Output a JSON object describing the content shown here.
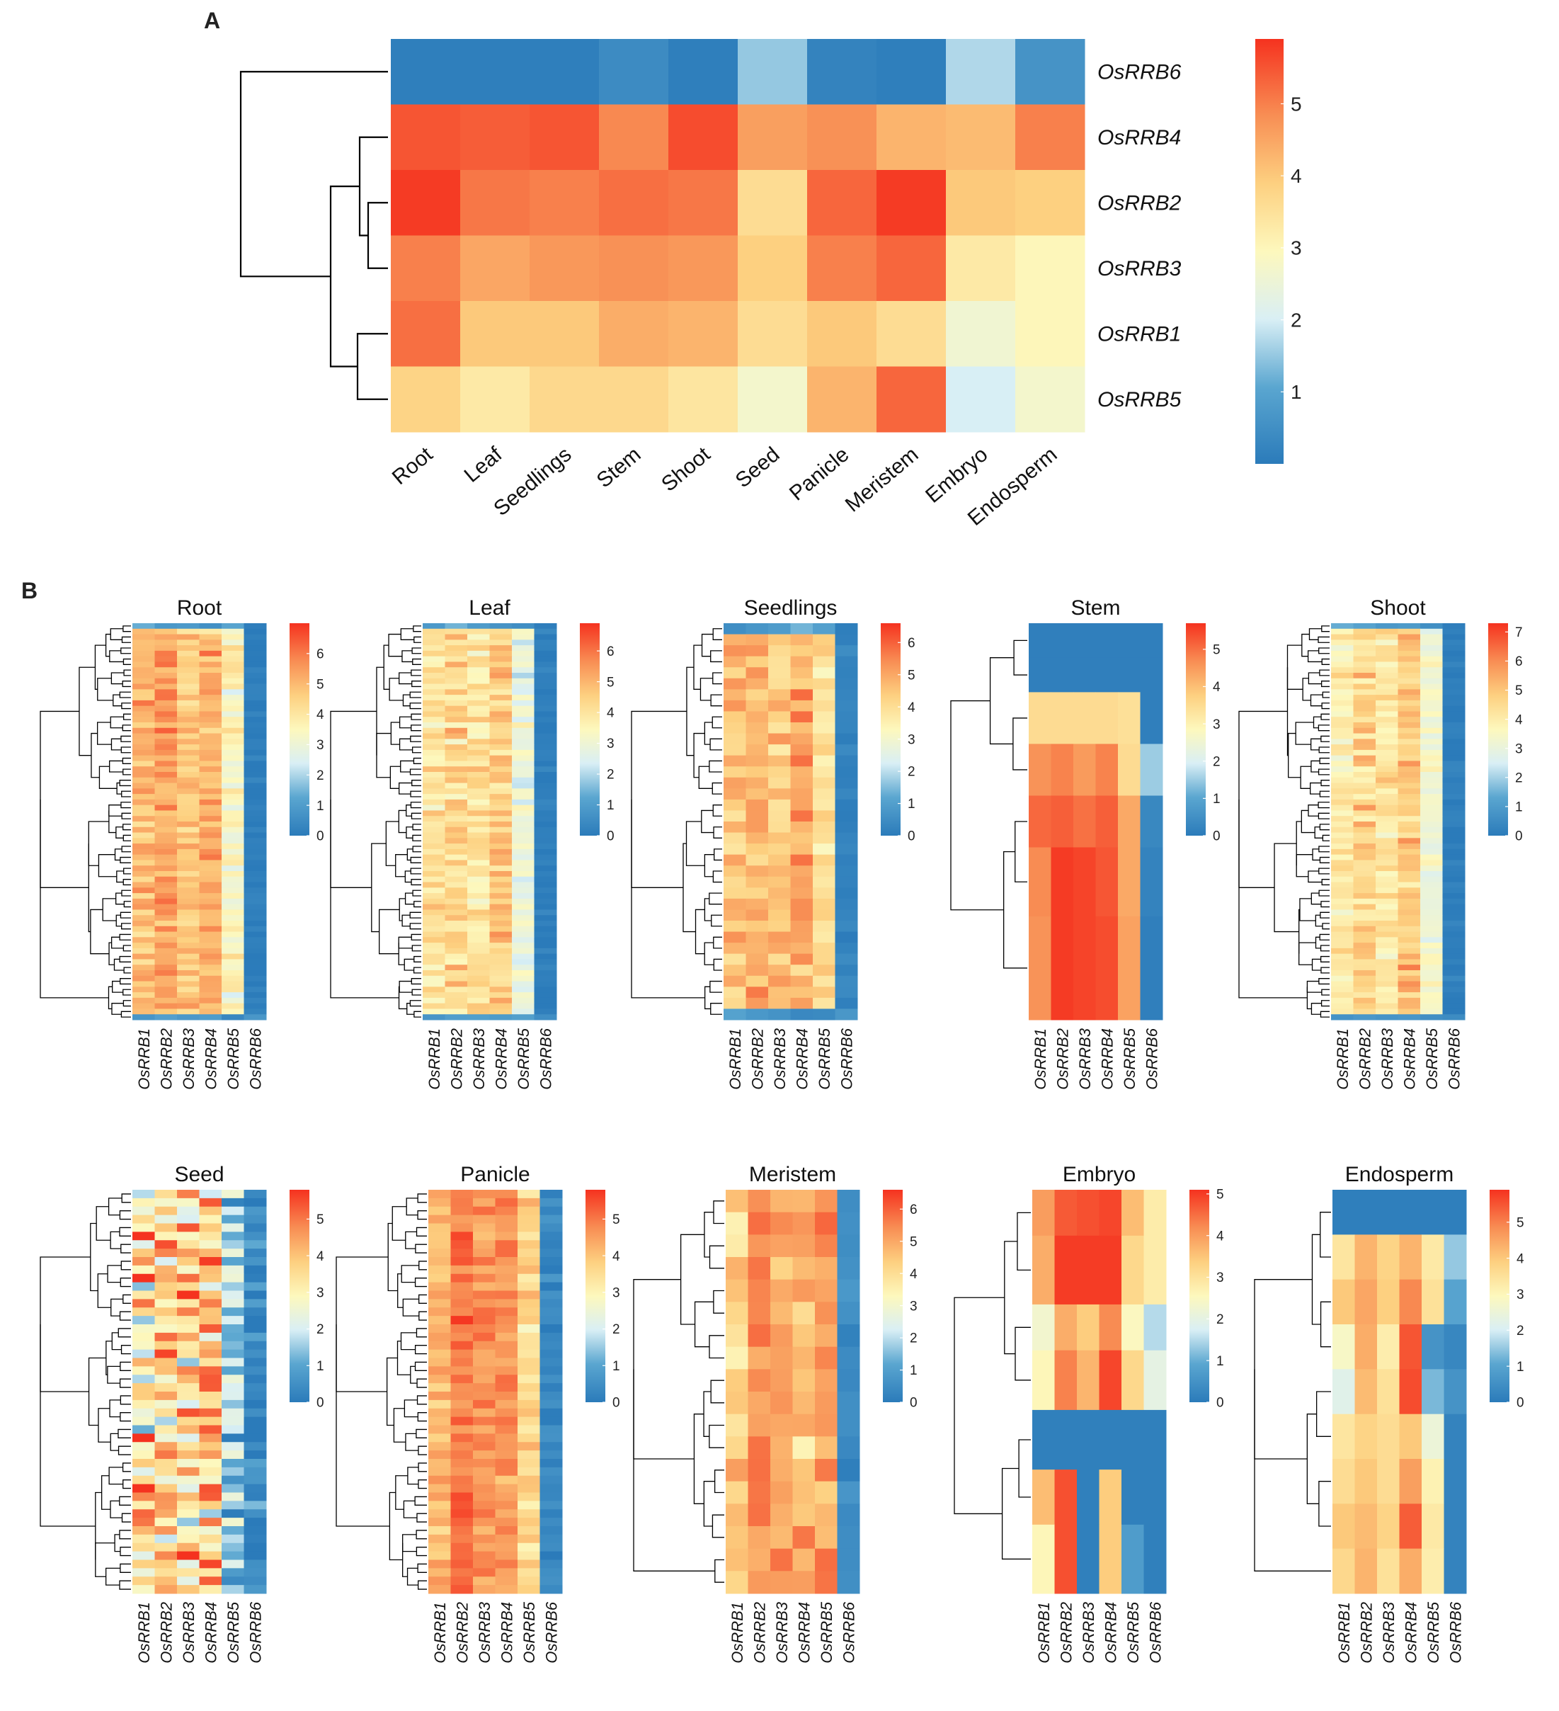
{
  "figure": {
    "panel_a_label": "A",
    "panel_b_label": "B",
    "color_low": "#2b7bba",
    "color_mid": "#fdf8bd",
    "color_high": "#f5321f"
  },
  "chart_data": [
    {
      "type": "heatmap",
      "panel": "A",
      "title": "",
      "rows": [
        "OsRRB6",
        "OsRRB4",
        "OsRRB2",
        "OsRRB3",
        "OsRRB1",
        "OsRRB5"
      ],
      "columns": [
        "Root",
        "Leaf",
        "Seedlings",
        "Stem",
        "Shoot",
        "Seed",
        "Panicle",
        "Meristem",
        "Embryo",
        "Endosperm"
      ],
      "values": [
        [
          0.1,
          0.1,
          0.1,
          0.4,
          0.1,
          1.5,
          0.2,
          0.1,
          1.7,
          0.6
        ],
        [
          5.5,
          5.4,
          5.5,
          4.9,
          5.6,
          4.6,
          4.8,
          4.3,
          4.2,
          5.0
        ],
        [
          5.8,
          5.1,
          5.0,
          5.2,
          5.1,
          3.6,
          5.3,
          5.8,
          4.0,
          3.9
        ],
        [
          5.0,
          4.5,
          4.7,
          4.8,
          4.7,
          3.9,
          5.0,
          5.3,
          3.3,
          3.0
        ],
        [
          5.2,
          4.0,
          4.0,
          4.4,
          4.3,
          3.6,
          4.0,
          3.6,
          2.6,
          3.0
        ],
        [
          3.8,
          3.3,
          3.7,
          3.7,
          3.4,
          2.7,
          4.3,
          5.3,
          2.0,
          2.7
        ]
      ],
      "colorbar": {
        "min": 0,
        "max": 5.9,
        "ticks": [
          "1",
          "2",
          "3",
          "4",
          "5"
        ]
      },
      "row_dendrogram": true
    },
    {
      "type": "heatmap",
      "panel": "B",
      "title": "Root",
      "columns": [
        "OsRRB1",
        "OsRRB2",
        "OsRRB3",
        "OsRRB4",
        "OsRRB5",
        "OsRRB6"
      ],
      "n_rows": 72,
      "max": 7,
      "ticks": [
        "0",
        "1",
        "2",
        "3",
        "4",
        "5",
        "6"
      ],
      "col_means": [
        4.9,
        5.4,
        4.7,
        5.1,
        3.4,
        0.1
      ],
      "col_spread": [
        0.6,
        0.6,
        0.6,
        0.6,
        0.6,
        0.2
      ]
    },
    {
      "type": "heatmap",
      "panel": "B",
      "title": "Leaf",
      "columns": [
        "OsRRB1",
        "OsRRB2",
        "OsRRB3",
        "OsRRB4",
        "OsRRB5",
        "OsRRB6"
      ],
      "n_rows": 72,
      "max": 6.9,
      "ticks": [
        "0",
        "1",
        "2",
        "3",
        "4",
        "5",
        "6"
      ],
      "col_means": [
        4.0,
        4.4,
        4.0,
        4.6,
        2.8,
        0.1
      ],
      "col_spread": [
        0.6,
        0.7,
        0.6,
        0.7,
        0.6,
        0.2
      ]
    },
    {
      "type": "heatmap",
      "panel": "B",
      "title": "Seedlings",
      "columns": [
        "OsRRB1",
        "OsRRB2",
        "OsRRB3",
        "OsRRB4",
        "OsRRB5",
        "OsRRB6"
      ],
      "n_rows": 36,
      "max": 6.6,
      "ticks": [
        "0",
        "1",
        "2",
        "3",
        "4",
        "5",
        "6"
      ],
      "col_means": [
        4.5,
        4.8,
        4.5,
        5.2,
        4.0,
        0.2
      ],
      "col_spread": [
        0.6,
        0.6,
        0.6,
        0.7,
        0.5,
        0.2
      ]
    },
    {
      "type": "heatmap",
      "panel": "B",
      "title": "Stem",
      "columns": [
        "OsRRB1",
        "OsRRB2",
        "OsRRB3",
        "OsRRB4",
        "OsRRB5",
        "OsRRB6"
      ],
      "rows_values": [
        [
          0.1,
          0.1,
          0.1,
          0.1,
          0.1,
          0.1
        ],
        [
          0.1,
          0.1,
          0.1,
          0.1,
          0.1,
          0.1
        ],
        [
          3.5,
          3.5,
          3.5,
          3.5,
          3.4,
          0.1
        ],
        [
          4.6,
          4.8,
          4.5,
          4.8,
          3.5,
          1.5
        ],
        [
          5.1,
          5.2,
          5.0,
          5.2,
          4.3,
          0.3
        ],
        [
          4.7,
          5.6,
          5.5,
          5.3,
          4.3,
          0.2
        ],
        [
          4.6,
          5.6,
          5.5,
          5.4,
          4.4,
          0.1
        ]
      ],
      "row_weights": [
        1,
        1,
        1.5,
        1.5,
        1.5,
        2,
        3
      ],
      "max": 5.7,
      "ticks": [
        "0",
        "1",
        "2",
        "3",
        "4",
        "5"
      ]
    },
    {
      "type": "heatmap",
      "panel": "B",
      "title": "Shoot",
      "columns": [
        "OsRRB1",
        "OsRRB2",
        "OsRRB3",
        "OsRRB4",
        "OsRRB5",
        "OsRRB6"
      ],
      "n_rows": 72,
      "max": 7.3,
      "ticks": [
        "0",
        "1",
        "2",
        "3",
        "4",
        "5",
        "6",
        "7"
      ],
      "col_means": [
        3.9,
        4.6,
        4.2,
        5.0,
        3.2,
        0.1
      ],
      "col_spread": [
        0.6,
        0.7,
        0.6,
        0.7,
        0.5,
        0.2
      ]
    },
    {
      "type": "heatmap",
      "panel": "B",
      "title": "Seed",
      "columns": [
        "OsRRB1",
        "OsRRB2",
        "OsRRB3",
        "OsRRB4",
        "OsRRB5",
        "OsRRB6"
      ],
      "n_rows": 48,
      "max": 5.8,
      "ticks": [
        "0",
        "1",
        "2",
        "3",
        "4",
        "5"
      ],
      "col_means": [
        3.2,
        3.8,
        3.4,
        4.0,
        1.6,
        0.4
      ],
      "col_spread": [
        1.6,
        1.6,
        1.6,
        1.5,
        1.2,
        0.6
      ]
    },
    {
      "type": "heatmap",
      "panel": "B",
      "title": "Panicle",
      "columns": [
        "OsRRB1",
        "OsRRB2",
        "OsRRB3",
        "OsRRB4",
        "OsRRB5",
        "OsRRB6"
      ],
      "n_rows": 48,
      "max": 5.8,
      "ticks": [
        "0",
        "1",
        "2",
        "3",
        "4",
        "5"
      ],
      "col_means": [
        4.2,
        5.0,
        4.6,
        4.7,
        3.6,
        0.3
      ],
      "col_spread": [
        0.5,
        0.5,
        0.5,
        0.5,
        0.5,
        0.3
      ]
    },
    {
      "type": "heatmap",
      "panel": "B",
      "title": "Meristem",
      "columns": [
        "OsRRB1",
        "OsRRB2",
        "OsRRB3",
        "OsRRB4",
        "OsRRB5",
        "OsRRB6"
      ],
      "n_rows": 18,
      "max": 6.6,
      "ticks": [
        "0",
        "1",
        "2",
        "3",
        "4",
        "5",
        "6"
      ],
      "col_means": [
        4.2,
        5.5,
        5.0,
        4.6,
        5.0,
        0.4
      ],
      "col_spread": [
        0.7,
        0.6,
        0.6,
        0.7,
        0.7,
        0.3
      ]
    },
    {
      "type": "heatmap",
      "panel": "B",
      "title": "Embryo",
      "columns": [
        "OsRRB1",
        "OsRRB2",
        "OsRRB3",
        "OsRRB4",
        "OsRRB5",
        "OsRRB6"
      ],
      "rows_values": [
        [
          4.0,
          4.7,
          4.8,
          4.9,
          3.6,
          2.8
        ],
        [
          3.8,
          5.0,
          5.0,
          5.0,
          3.2,
          2.8
        ],
        [
          2.3,
          3.8,
          3.4,
          4.2,
          2.5,
          1.5
        ],
        [
          2.6,
          4.3,
          3.7,
          4.9,
          3.2,
          2.0
        ],
        [
          0.1,
          0.1,
          0.1,
          0.1,
          0.1,
          0.1
        ],
        [
          3.6,
          4.8,
          0.1,
          3.4,
          0.1,
          0.1
        ],
        [
          2.6,
          4.8,
          0.1,
          3.4,
          0.7,
          0.1
        ]
      ],
      "row_weights": [
        1,
        1.5,
        1,
        1.3,
        1.3,
        1.2,
        1.5
      ],
      "max": 5.1,
      "ticks": [
        "0",
        "1",
        "2",
        "3",
        "4",
        "5"
      ]
    },
    {
      "type": "heatmap",
      "panel": "B",
      "title": "Endosperm",
      "columns": [
        "OsRRB1",
        "OsRRB2",
        "OsRRB3",
        "OsRRB4",
        "OsRRB5",
        "OsRRB6"
      ],
      "rows_values": [
        [
          0.1,
          0.1,
          0.1,
          0.1,
          0.1,
          0.1
        ],
        [
          3.4,
          4.3,
          3.8,
          4.3,
          3.3,
          1.5
        ],
        [
          4.0,
          4.5,
          3.9,
          4.9,
          3.5,
          1.0
        ],
        [
          2.8,
          4.4,
          3.2,
          5.5,
          0.6,
          0.3
        ],
        [
          2.2,
          4.2,
          3.5,
          5.6,
          1.3,
          0.6
        ],
        [
          3.4,
          3.8,
          3.6,
          4.0,
          2.5,
          0.2
        ],
        [
          3.6,
          4.0,
          3.6,
          4.6,
          3.1,
          0.2
        ],
        [
          4.0,
          4.2,
          3.8,
          5.4,
          3.3,
          0.2
        ],
        [
          3.7,
          4.3,
          3.5,
          4.4,
          3.2,
          0.2
        ]
      ],
      "row_weights": [
        1,
        1,
        1,
        1,
        1,
        1,
        1,
        1,
        1
      ],
      "max": 5.9,
      "ticks": [
        "0",
        "1",
        "2",
        "3",
        "4",
        "5"
      ]
    }
  ]
}
